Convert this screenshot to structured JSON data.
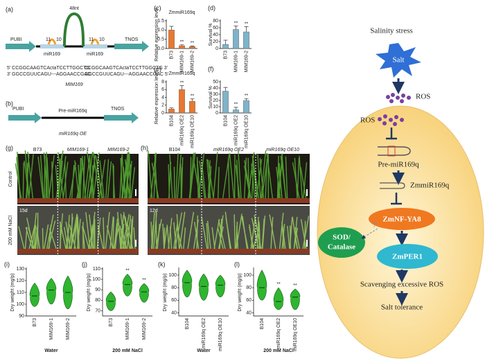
{
  "panel_labels": [
    "(a)",
    "(b)",
    "(c)",
    "(d)",
    "(e)",
    "(f)",
    "(g)",
    "(h)",
    "(i)",
    "(j)",
    "(k)",
    "(l)"
  ],
  "construct_a": {
    "left": "PUBI",
    "right": "TNOS",
    "loop": "48nt",
    "sites": [
      "miR169",
      "miR169"
    ],
    "numbers": [
      "11",
      "10",
      "11",
      "10"
    ],
    "seq_top": [
      "5' CCGGCAAGTCActaTCCTTGGCTG",
      "CCGGCAAGTCActaTCCTTGGCTG 3'"
    ],
    "seq_bottom": [
      "3' GGCCGUUCAGU---AGGAACCGAC",
      "GGCCGUUCAGU---AGGAACCGAC 5'"
    ],
    "caption": "MIM169"
  },
  "construct_b": {
    "left": "PUBI",
    "middle": "Pre-miR169q",
    "right": "TNOS",
    "caption": "miR169q OE"
  },
  "photos": [
    {
      "columns": [
        "B73",
        "MIM169-1",
        "MIM169-2"
      ],
      "rows": [
        "Control",
        "200 mM NaCl"
      ],
      "day": "15d"
    },
    {
      "columns": [
        "B104",
        "miR169q OE2",
        "miR169q OE10"
      ],
      "day": "12d"
    }
  ],
  "chart_data": [
    {
      "type": "bar",
      "title": "ZmmiR169q",
      "ylabel": "Relative expression level",
      "categories": [
        "B73",
        "MIM169-1",
        "MIM169-2"
      ],
      "values": [
        1.0,
        0.15,
        0.1
      ],
      "errors": [
        0.2,
        0.05,
        0.04
      ],
      "stars": [
        null,
        "**",
        "**"
      ],
      "color": "#e8782f",
      "ylim": [
        0,
        1.5
      ],
      "yticks": [
        {
          "value": 0,
          "label": "0.0"
        },
        {
          "value": 0.5,
          "label": "0.5"
        },
        {
          "value": 1,
          "label": "1.0"
        },
        {
          "value": 1.5,
          "label": "1.5"
        }
      ]
    },
    {
      "type": "bar",
      "ylabel": "Survival %",
      "categories": [
        "B73",
        "MIM169-1",
        "MIM169-2"
      ],
      "values": [
        12,
        55,
        48
      ],
      "errors": [
        12,
        10,
        15
      ],
      "stars": [
        null,
        "**",
        "**"
      ],
      "color": "#7fb3c9",
      "ylim": [
        0,
        80
      ],
      "yticks": [
        0,
        20,
        40,
        60,
        80
      ]
    },
    {
      "type": "bar",
      "title": "ZmmiR169q",
      "ylabel": "Relative expression level",
      "categories": [
        "B104",
        "miR169q OE2",
        "miR169q OE10"
      ],
      "values": [
        1,
        6,
        3
      ],
      "errors": [
        0.3,
        1,
        0.6
      ],
      "stars": [
        null,
        "**",
        "**"
      ],
      "color": "#e8782f",
      "ylim": [
        0,
        8
      ],
      "yticks": [
        0,
        2,
        4,
        6,
        8
      ]
    },
    {
      "type": "bar",
      "ylabel": "Survival %",
      "categories": [
        "B104",
        "miR169q OE2",
        "miR169q OE10"
      ],
      "values": [
        35,
        5,
        20
      ],
      "errors": [
        6,
        4,
        3
      ],
      "stars": [
        null,
        "**",
        "**"
      ],
      "color": "#7fb3c9",
      "ylim": [
        0,
        50
      ],
      "yticks": [
        0,
        10,
        20,
        30,
        40,
        50
      ]
    },
    {
      "type": "violin",
      "ylabel": "Dry weight (mg/p)",
      "xlabel": "Water",
      "categories": [
        "B73",
        "MIM169-1",
        "MIM169-2"
      ],
      "low": [
        98,
        100,
        96
      ],
      "median": [
        107,
        112,
        110
      ],
      "high": [
        118,
        122,
        124
      ],
      "stars": [
        null,
        null,
        null
      ],
      "color": "#2fb52f",
      "ylim": [
        90,
        130
      ],
      "yticks": [
        90,
        100,
        110,
        120,
        130
      ]
    },
    {
      "type": "violin",
      "ylabel": "Dry weight (mg/p)",
      "xlabel": "200 mM NaCl",
      "categories": [
        "B73",
        "MIM169-1",
        "MIM169-2"
      ],
      "low": [
        70,
        84,
        78
      ],
      "median": [
        79,
        95,
        88
      ],
      "high": [
        88,
        105,
        96
      ],
      "stars": [
        null,
        "**",
        "**"
      ],
      "color": "#2fb52f",
      "ylim": [
        65,
        110
      ],
      "yticks": [
        70,
        80,
        90,
        100,
        110
      ]
    },
    {
      "type": "violin",
      "ylabel": "Dry weight (mg/p)",
      "xlabel": "Water",
      "categories": [
        "B104",
        "miR169q OE2",
        "miR169q OE10"
      ],
      "low": [
        65,
        60,
        65
      ],
      "median": [
        88,
        82,
        84
      ],
      "high": [
        108,
        102,
        100
      ],
      "stars": [
        null,
        null,
        null
      ],
      "color": "#2fb52f",
      "ylim": [
        35,
        110
      ],
      "yticks": [
        40,
        60,
        80,
        100
      ]
    },
    {
      "type": "violin",
      "ylabel": "Dry weight (mg/p)",
      "xlabel": "200 mM NaCl",
      "categories": [
        "B104",
        "miR169q OE2",
        "miR169q OE10"
      ],
      "low": [
        60,
        45,
        45
      ],
      "median": [
        80,
        58,
        65
      ],
      "high": [
        108,
        80,
        78
      ],
      "stars": [
        null,
        "**",
        "**"
      ],
      "color": "#2fb52f",
      "ylim": [
        35,
        110
      ],
      "yticks": [
        40,
        60,
        80,
        100
      ]
    }
  ],
  "model": {
    "title": "Salinity stress",
    "salt": "Salt",
    "ros": [
      "ROS",
      "ROS"
    ],
    "pre": "Pre-miR169q",
    "mature": "ZmmiR169q",
    "target": "ZmNF-YA8",
    "sod": [
      "SOD/",
      "Catalase"
    ],
    "question": "?",
    "per": "ZmPER1",
    "scavenge": "Scavenging excessive ROS",
    "outcome": "Salt tolerance"
  }
}
